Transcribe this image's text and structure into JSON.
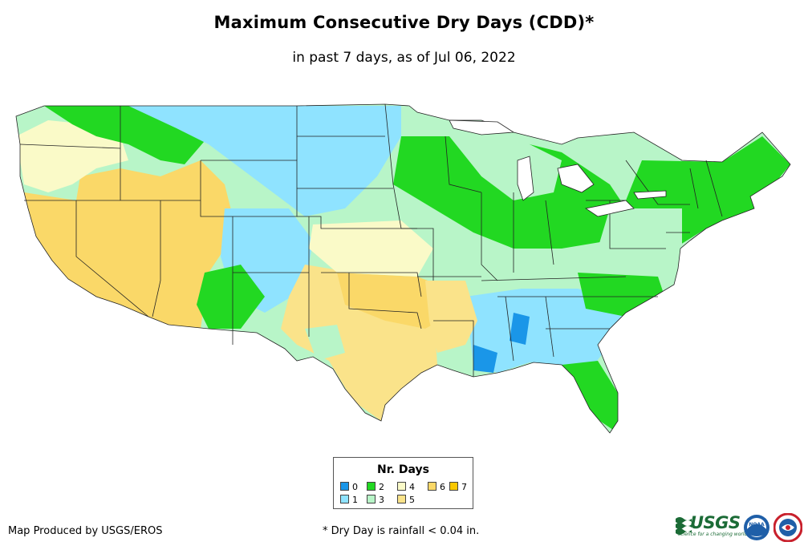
{
  "title": "Maximum Consecutive Dry Days (CDD)*",
  "subtitle": "in past 7 days, as of Jul 06, 2022",
  "legend": {
    "title": "Nr. Days",
    "items": [
      {
        "label": "0",
        "color": "#1a96e8"
      },
      {
        "label": "1",
        "color": "#8fe3ff"
      },
      {
        "label": "2",
        "color": "#22d822"
      },
      {
        "label": "3",
        "color": "#b8f5c8"
      },
      {
        "label": "4",
        "color": "#fafac8"
      },
      {
        "label": "5",
        "color": "#fae38a"
      },
      {
        "label": "6",
        "color": "#fad868"
      },
      {
        "label": "7",
        "color": "#fac800"
      }
    ]
  },
  "credit": "Map Produced by USGS/EROS",
  "footnote": "* Dry Day is rainfall < 0.04 in.",
  "logos": {
    "usgs": "USGS",
    "usgs_tagline": "science for a changing world",
    "noaa": "NOAA",
    "nws_icon": "national-weather-service-icon"
  }
}
